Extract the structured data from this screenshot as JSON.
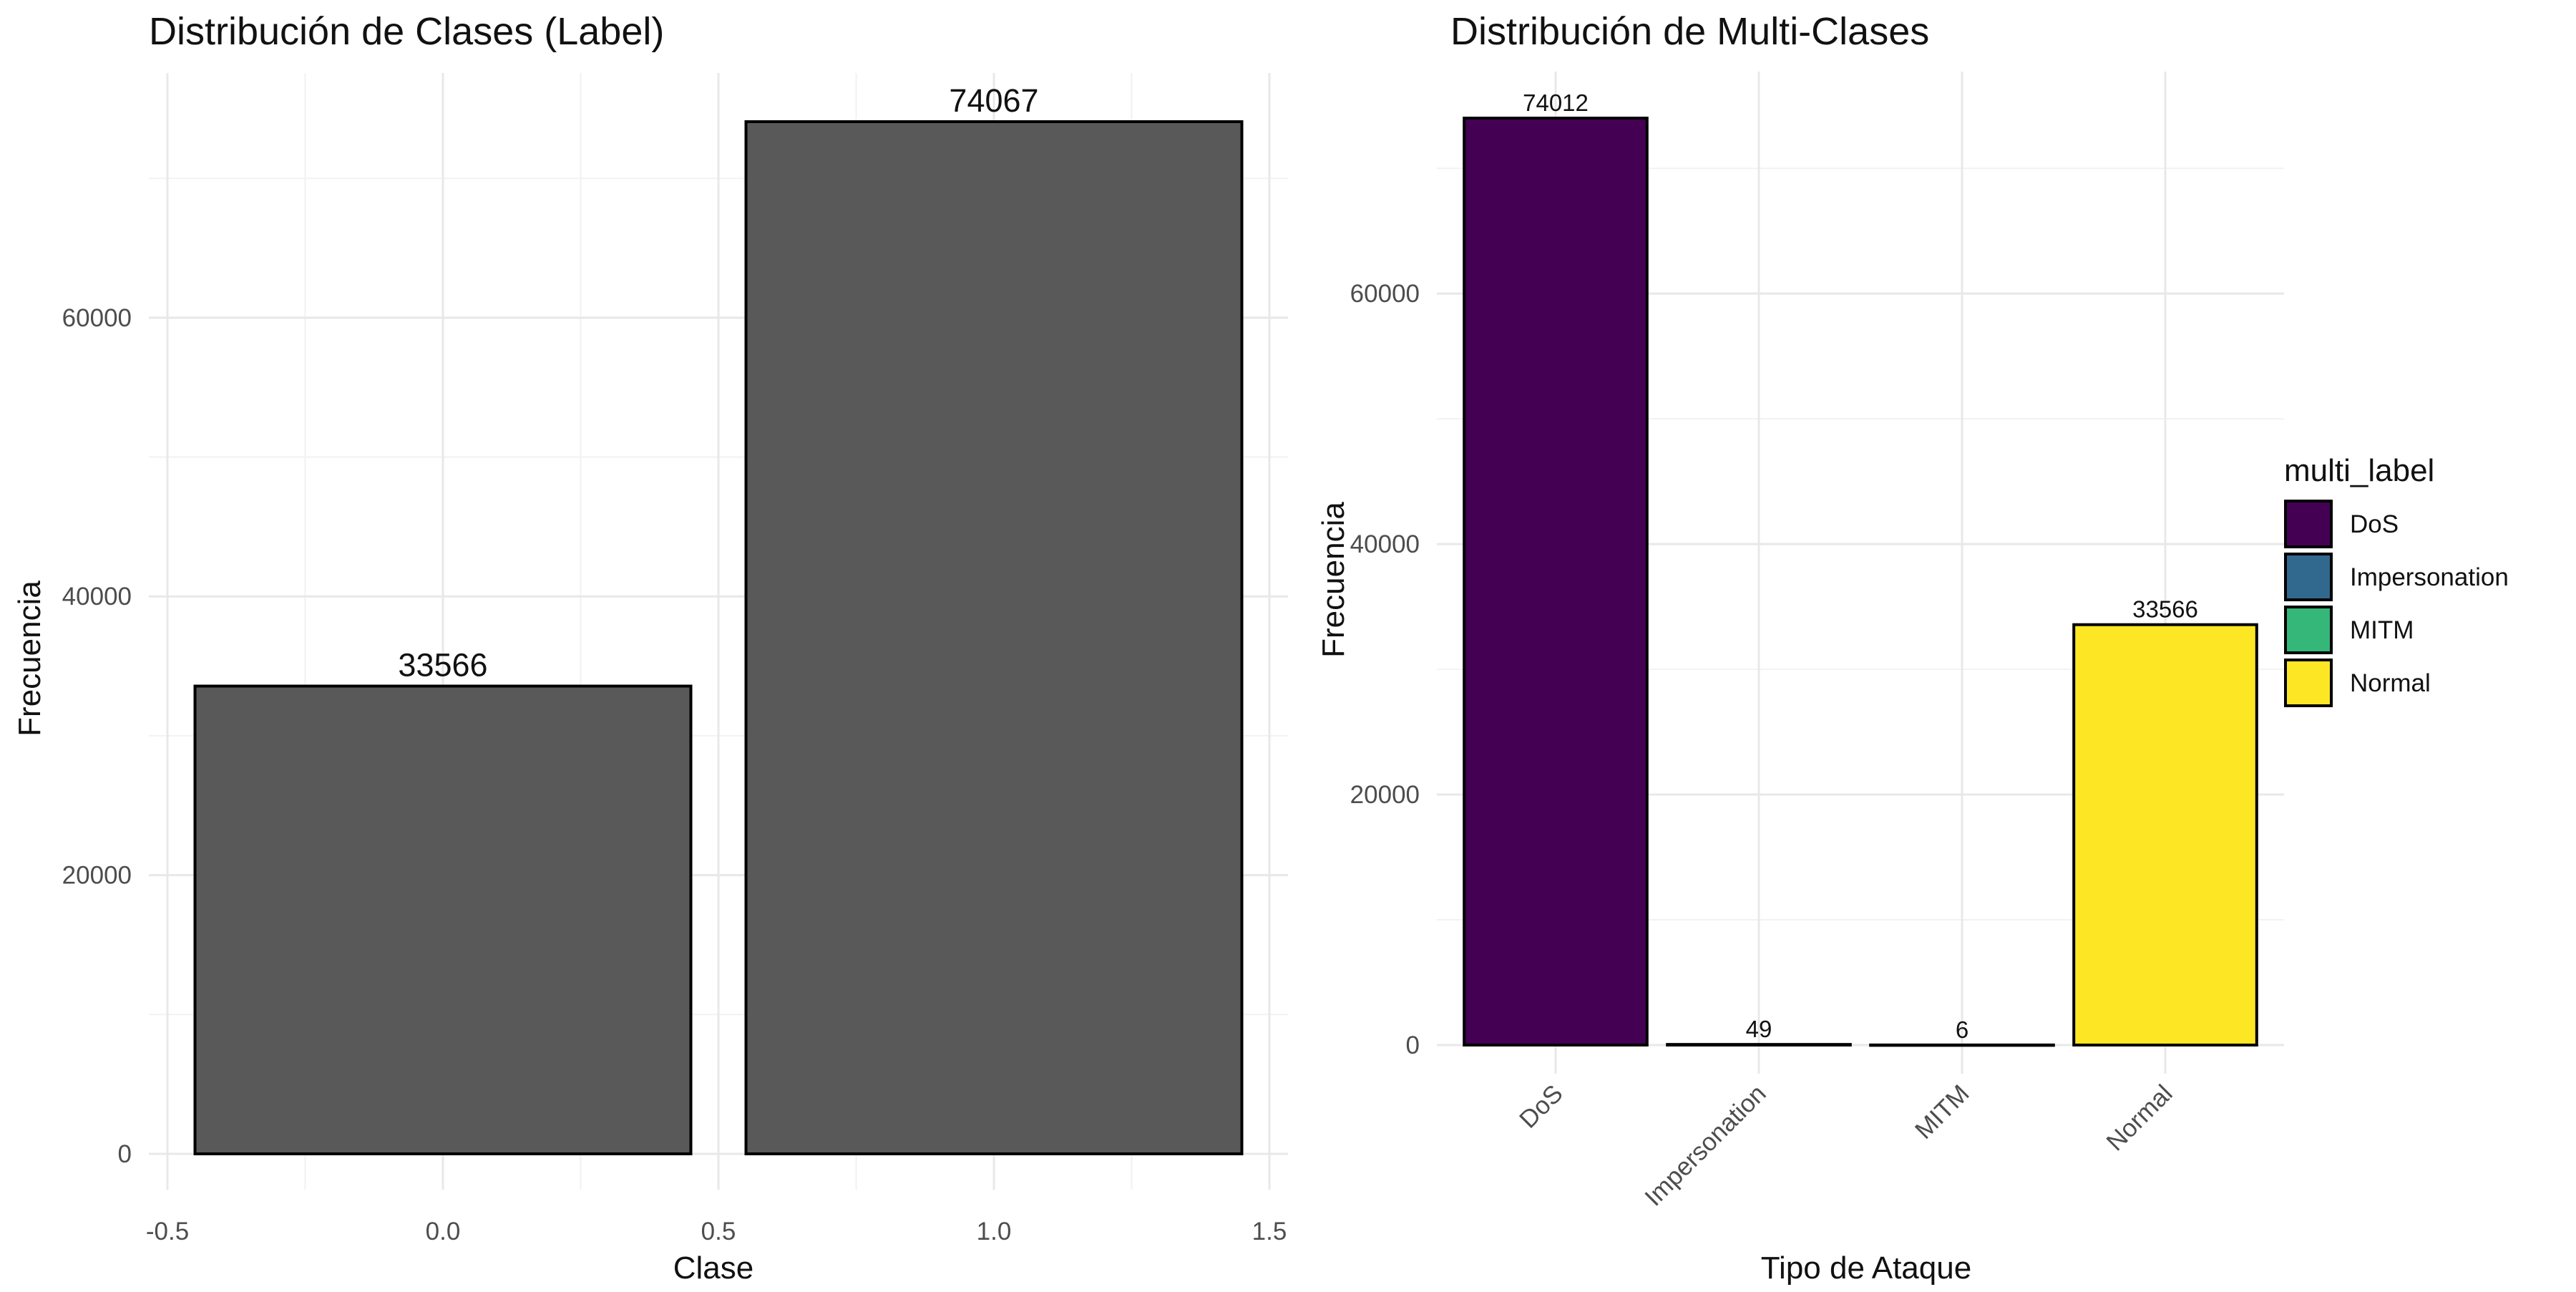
{
  "chart_data": [
    {
      "type": "bar",
      "title": "Distribución de Clases (Label)",
      "xlabel": "Clase",
      "ylabel": "Frecuencia",
      "x": [
        0,
        1
      ],
      "values": [
        33566,
        74067
      ],
      "value_labels": [
        "33566",
        "74067"
      ],
      "bar_color": "#595959",
      "xlim": [
        -0.5,
        1.5
      ],
      "ylim": [
        0,
        74067
      ],
      "x_ticks": [
        -0.5,
        0.0,
        0.5,
        1.0,
        1.5
      ],
      "x_tick_labels": [
        "-0.5",
        "0.0",
        "0.5",
        "1.0",
        "1.5"
      ],
      "y_ticks": [
        0,
        20000,
        40000,
        60000
      ],
      "y_tick_labels": [
        "0",
        "20000",
        "40000",
        "60000"
      ],
      "grid": true,
      "legend": "none"
    },
    {
      "type": "bar",
      "title": "Distribución de Multi-Clases",
      "xlabel": "Tipo de Ataque",
      "ylabel": "Frecuencia",
      "categories": [
        "DoS",
        "Impersonation",
        "MITM",
        "Normal"
      ],
      "values": [
        74012,
        49,
        6,
        33566
      ],
      "value_labels": [
        "74012",
        "49",
        "6",
        "33566"
      ],
      "colors": [
        "#440154",
        "#31688E",
        "#35B779",
        "#FDE725"
      ],
      "ylim": [
        0,
        74012
      ],
      "y_ticks": [
        0,
        20000,
        40000,
        60000
      ],
      "y_tick_labels": [
        "0",
        "20000",
        "40000",
        "60000"
      ],
      "grid": true,
      "legend": {
        "position": "right",
        "title": "multi_label",
        "items": [
          "DoS",
          "Impersonation",
          "MITM",
          "Normal"
        ]
      }
    }
  ]
}
